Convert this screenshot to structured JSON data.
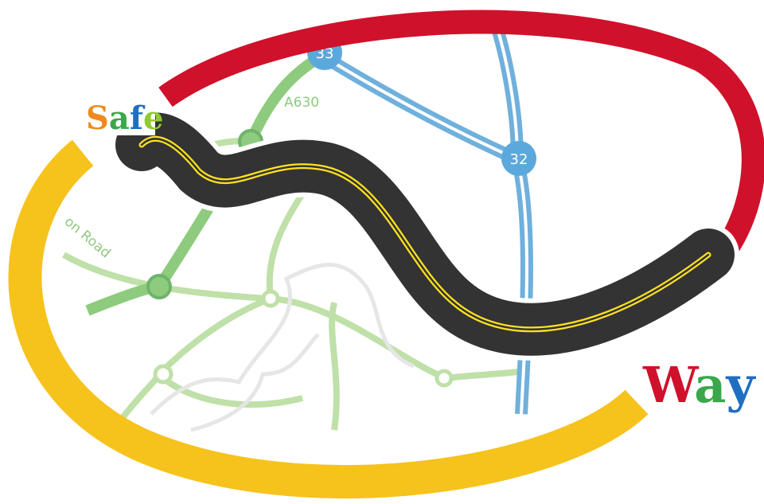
{
  "logo": {
    "top_word": {
      "letters": [
        "S",
        "a",
        "f",
        "e"
      ]
    },
    "bottom_word": {
      "letters": [
        "W",
        "a",
        "y"
      ]
    },
    "map_labels": {
      "road_name": "A630",
      "junction_a": "33",
      "junction_b": "32",
      "street": "on Road"
    }
  }
}
